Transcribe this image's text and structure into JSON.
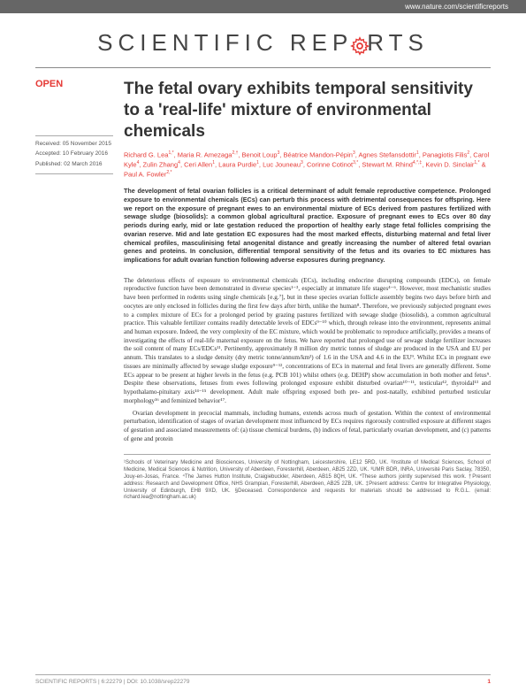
{
  "header": {
    "url": "www.nature.com/scientificreports"
  },
  "journal": {
    "logo_pre": "SCIENTIFIC ",
    "logo_mid": "REP",
    "logo_post": "RTS",
    "gear_color": "#e53935"
  },
  "sidebar": {
    "open_label": "OPEN",
    "received_label": "Received: ",
    "received_date": "05 November 2015",
    "accepted_label": "Accepted: ",
    "accepted_date": "10 February 2016",
    "published_label": "Published: ",
    "published_date": "02 March 2016"
  },
  "article": {
    "title": "The fetal ovary exhibits temporal sensitivity to a 'real-life' mixture of environmental chemicals",
    "authors_html": "Richard G. Lea<sup>1,*</sup>, Maria R. Amezaga<sup>2,†</sup>, Benoit Loup<sup>3</sup>, Béatrice Mandon-Pépin<sup>3</sup>, Agnes Stefansdottir<sup>1</sup>, Panagiotis Filis<sup>2</sup>, Carol Kyle<sup>4</sup>, Zulin Zhang<sup>4</sup>, Ceri Allen<sup>1</sup>, Laura Purdie<sup>1</sup>, Luc Jouneau<sup>3</sup>, Corinne Cotinot<sup>3,*</sup>, Stewart M. Rhind<sup>4,*,‡</sup>, Kevin D. Sinclair<sup>1,*</sup> & Paul A. Fowler<sup>2,*</sup>",
    "abstract": "The development of fetal ovarian follicles is a critical determinant of adult female reproductive competence. Prolonged exposure to environmental chemicals (ECs) can perturb this process with detrimental consequences for offspring. Here we report on the exposure of pregnant ewes to an environmental mixture of ECs derived from pastures fertilized with sewage sludge (biosolids): a common global agricultural practice. Exposure of pregnant ewes to ECs over 80 day periods during early, mid or late gestation reduced the proportion of healthy early stage fetal follicles comprising the ovarian reserve. Mid and late gestation EC exposures had the most marked effects, disturbing maternal and fetal liver chemical profiles, masculinising fetal anogenital distance and greatly increasing the number of altered fetal ovarian genes and proteins. In conclusion, differential temporal sensitivity of the fetus and its ovaries to EC mixtures has implications for adult ovarian function following adverse exposures during pregnancy.",
    "body_paragraphs": [
      "The deleterious effects of exposure to environmental chemicals (ECs), including endocrine disrupting compounds (EDCs), on female reproductive function have been demonstrated in diverse species¹⁻³, especially at immature life stages⁴⁻⁶. However, most mechanistic studies have been performed in rodents using single chemicals [e.g.⁷], but in these species ovarian follicle assembly begins two days before birth and oocytes are only enclosed in follicles during the first few days after birth, unlike the human⁸. Therefore, we previously subjected pregnant ewes to a complex mixture of ECs for a prolonged period by grazing pastures fertilized with sewage sludge (biosolids), a common agricultural practice. This valuable fertilizer contains readily detectable levels of EDCs⁹⁻¹⁰ which, through release into the environment, represents animal and human exposure. Indeed, the very complexity of the EC mixture, which would be problematic to reproduce artificially, provides a means of investigating the effects of real-life maternal exposure on the fetus. We have reported that prolonged use of sewage sludge fertilizer increases the soil content of many ECs/EDCs¹¹. Pertinently, approximately 8 million dry metric tonnes of sludge are produced in the USA and EU per annum. This translates to a sludge density (dry metric tonne/annum/km²) of 1.6 in the USA and 4.6 in the EU⁹. Whilst ECs in pregnant ewe tissues are minimally affected by sewage sludge exposure⁹⁻¹², concentrations of ECs in maternal and fetal livers are generally different. Some ECs appear to be present at higher levels in the fetus (e.g. PCB 101) whilst others (e.g. DEHP) show accumulation in both mother and fetus⁹. Despite these observations, fetuses from ewes following prolonged exposure exhibit disturbed ovarian¹⁰⁻¹¹, testicular¹², thyroidal¹³ and hypothalamo-pituitary axis¹⁴⁻¹⁵ development. Adult male offspring exposed both pre- and post-natally, exhibited perturbed testicular morphology¹⁶ and feminized behavior¹⁷.",
      "Ovarian development in precocial mammals, including humans, extends across much of gestation. Within the context of environmental perturbation, identification of stages of ovarian development most influenced by ECs requires rigorously controlled exposure at different stages of gestation and associated measurements of: (a) tissue chemical burdens, (b) indices of fetal, particularly ovarian development, and (c) patterns of gene and protein"
    ],
    "affiliations": "¹Schools of Veterinary Medicine and Biosciences, University of Nottingham, Leicestershire, LE12 5RD, UK. ²Institute of Medical Sciences, School of Medicine, Medical Sciences & Nutrition, University of Aberdeen, Foresterhill, Aberdeen, AB25 2ZD, UK. ³UMR BDR, INRA, Université Paris Saclay, 78350, Jouy-en-Josas, France. ⁴The James Hutton Institute, Craigiebuckler, Aberdeen, AB15 8QH, UK. *These authors jointly supervised this work. †Present address: Research and Development Office, NHS Grampian, Foresterhill, Aberdeen, AB25 2ZB, UK. ‡Present address: Centre for Integrative Physiology, University of Edinburgh, EH8 9XD, UK. §Deceased. Correspondence and requests for materials should be addressed to R.G.L. (email: richard.lea@nottingham.ac.uk)"
  },
  "footer": {
    "left": "SCIENTIFIC REPORTS | 6:22279 | DOI: 10.1038/srep22279",
    "page": "1"
  }
}
